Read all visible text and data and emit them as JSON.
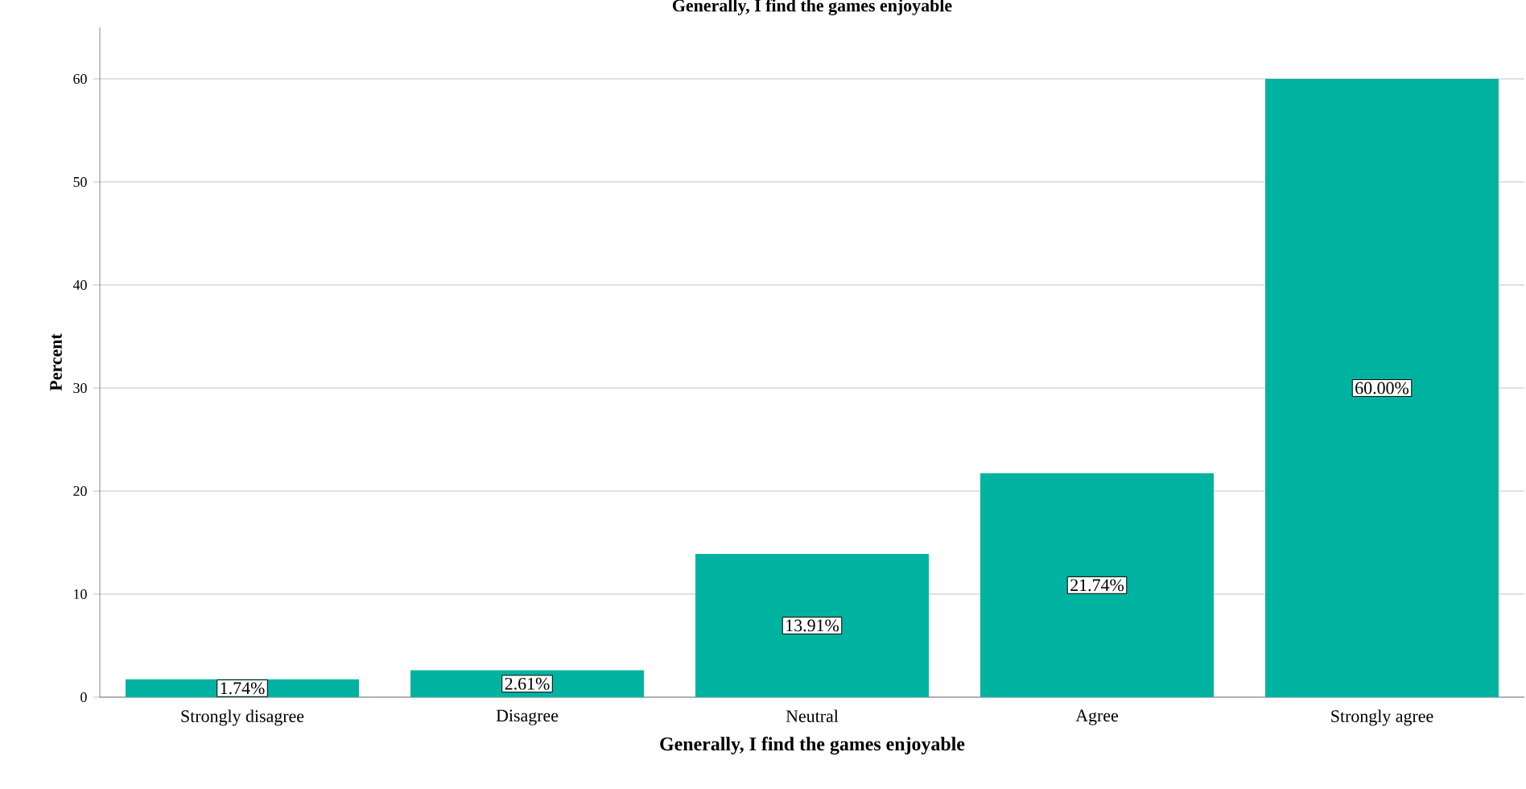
{
  "chart_data": {
    "type": "bar",
    "title": "Generally, I find the games enjoyable",
    "xlabel": "Generally, I find the games enjoyable",
    "ylabel": "Percent",
    "categories": [
      "Strongly disagree",
      "Disagree",
      "Neutral",
      "Agree",
      "Strongly agree"
    ],
    "values": [
      1.74,
      2.61,
      13.91,
      21.74,
      60.0
    ],
    "value_labels": [
      "1.74%",
      "2.61%",
      "13.91%",
      "21.74%",
      "60.00%"
    ],
    "color": "#00b3a0",
    "ylim": [
      0,
      65
    ],
    "yticks": [
      0,
      10,
      20,
      30,
      40,
      50,
      60
    ],
    "grid": "y"
  }
}
